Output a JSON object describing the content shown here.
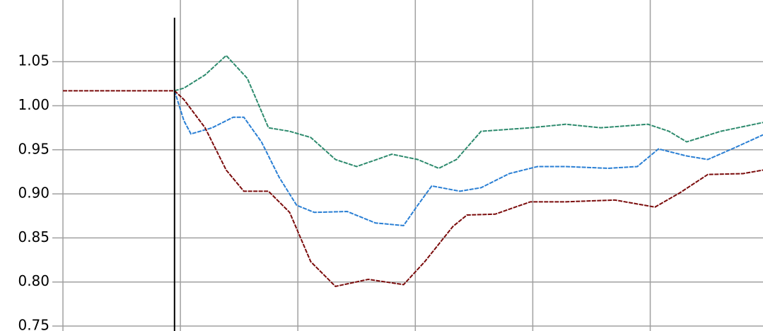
{
  "chart_data": {
    "type": "line",
    "xlim": [
      0,
      5.96
    ],
    "xticks": [
      0,
      1,
      2,
      3,
      4,
      5
    ],
    "ylim": [
      0.75,
      1.12
    ],
    "yticks": [
      0.75,
      {
        "value": 0.8,
        "label": "0.80"
      },
      0.85,
      {
        "value": 0.9,
        "label": "0.90"
      },
      0.95,
      {
        "value": 1.0,
        "label": "1.00"
      },
      1.05
    ],
    "grid": true,
    "vline": 0.95,
    "series": [
      {
        "color": "#2e8b6e",
        "x": [
          0.95,
          1.03,
          1.21,
          1.39,
          1.57,
          1.75,
          1.93,
          2.11,
          2.32,
          2.5,
          2.8,
          3.02,
          3.2,
          3.35,
          3.56,
          3.98,
          4.28,
          4.58,
          4.98,
          5.16,
          5.31,
          5.6,
          5.96
        ],
        "values": [
          1.017,
          1.02,
          1.035,
          1.057,
          1.031,
          0.975,
          0.971,
          0.964,
          0.939,
          0.931,
          0.945,
          0.939,
          0.929,
          0.939,
          0.971,
          0.975,
          0.979,
          0.975,
          0.979,
          0.971,
          0.959,
          0.971,
          0.981
        ]
      },
      {
        "color": "#2a7fd4",
        "x": [
          0.95,
          1.03,
          1.09,
          1.27,
          1.45,
          1.54,
          1.69,
          1.84,
          1.99,
          2.14,
          2.42,
          2.66,
          2.9,
          3.02,
          3.14,
          3.38,
          3.56,
          3.8,
          4.04,
          4.28,
          4.64,
          4.89,
          5.07,
          5.31,
          5.49,
          5.73,
          5.96
        ],
        "values": [
          1.017,
          0.983,
          0.968,
          0.975,
          0.987,
          0.987,
          0.959,
          0.919,
          0.887,
          0.879,
          0.88,
          0.867,
          0.864,
          0.887,
          0.909,
          0.903,
          0.907,
          0.923,
          0.931,
          0.931,
          0.929,
          0.931,
          0.951,
          0.943,
          0.939,
          0.953,
          0.967
        ]
      },
      {
        "color": "#7b0c0c",
        "x": [
          0,
          0.95,
          1.03,
          1.21,
          1.39,
          1.54,
          1.75,
          1.93,
          2.11,
          2.32,
          2.6,
          2.9,
          3.08,
          3.32,
          3.44,
          3.68,
          3.98,
          4.28,
          4.7,
          5.04,
          5.25,
          5.49,
          5.79,
          5.96
        ],
        "values": [
          1.017,
          1.017,
          1.007,
          0.975,
          0.927,
          0.903,
          0.903,
          0.879,
          0.823,
          0.795,
          0.803,
          0.797,
          0.823,
          0.863,
          0.876,
          0.877,
          0.891,
          0.891,
          0.893,
          0.885,
          0.901,
          0.922,
          0.923,
          0.927
        ]
      }
    ]
  }
}
